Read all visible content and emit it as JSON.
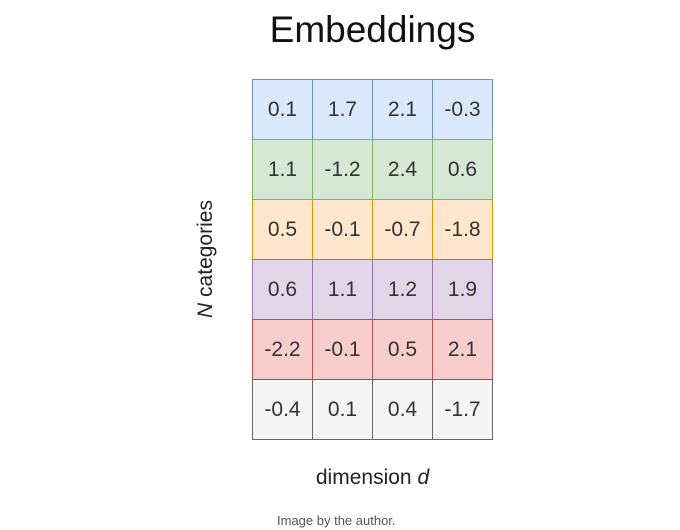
{
  "title": "Embeddings",
  "row_axis": {
    "italic": "N",
    "text": " categories"
  },
  "col_axis": {
    "text": "dimension ",
    "italic": "d"
  },
  "caption": "Image by the author.",
  "rows": [
    {
      "color": "#dae8fc",
      "border": "#6c8ebf",
      "values": [
        "0.1",
        "1.7",
        "2.1",
        "-0.3"
      ]
    },
    {
      "color": "#d5e8d4",
      "border": "#82b366",
      "values": [
        "1.1",
        "-1.2",
        "2.4",
        "0.6"
      ]
    },
    {
      "color": "#ffe6cc",
      "border": "#d79b00",
      "values": [
        "0.5",
        "-0.1",
        "-0.7",
        "-1.8"
      ]
    },
    {
      "color": "#e1d5e7",
      "border": "#9673a6",
      "values": [
        "0.6",
        "1.1",
        "1.2",
        "1.9"
      ]
    },
    {
      "color": "#f8cecc",
      "border": "#b85450",
      "values": [
        "-2.2",
        "-0.1",
        "0.5",
        "2.1"
      ]
    },
    {
      "color": "#f5f5f5",
      "border": "#666666",
      "values": [
        "-0.4",
        "0.1",
        "0.4",
        "-1.7"
      ]
    }
  ]
}
